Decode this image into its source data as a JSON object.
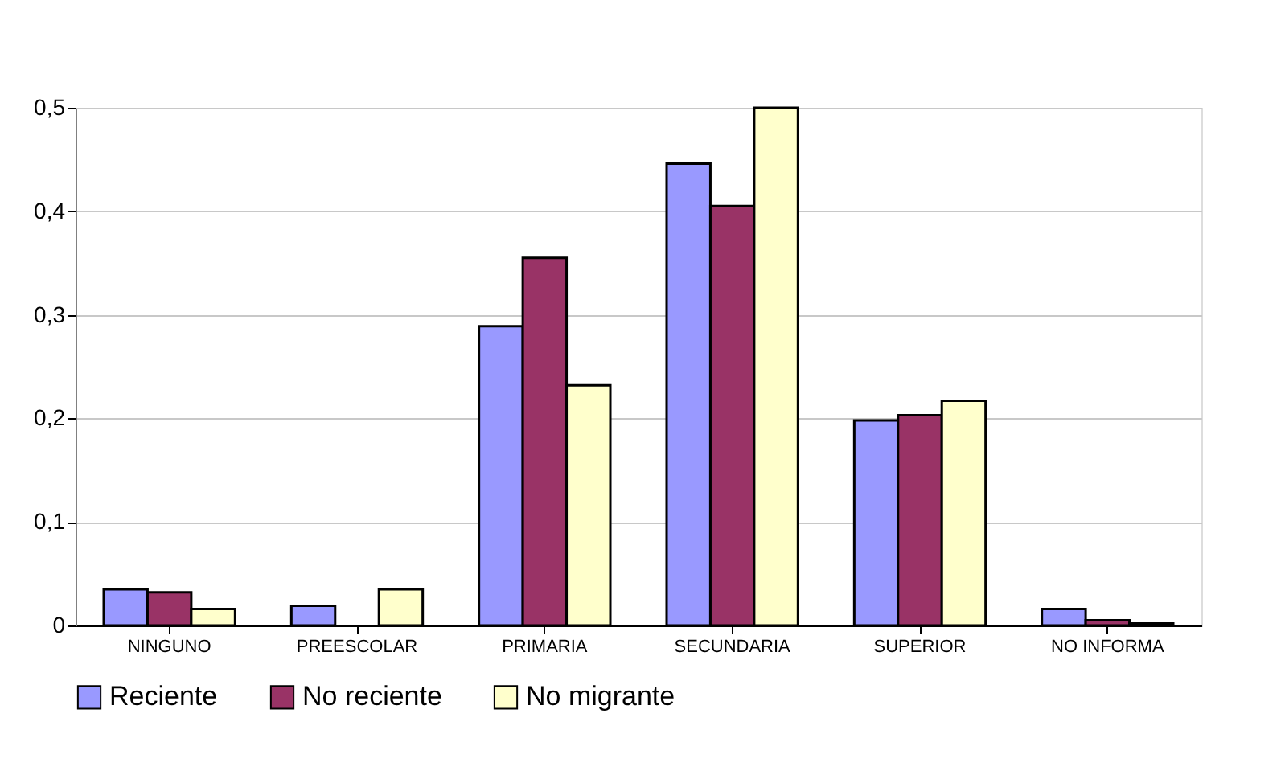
{
  "chart_data": {
    "type": "bar",
    "categories": [
      "NINGUNO",
      "PREESCOLAR",
      "PRIMARIA",
      "SECUNDARIA",
      "SUPERIOR",
      "NO INFORMA"
    ],
    "series": [
      {
        "name": "Reciente",
        "color": "#9999ff",
        "values": [
          0.035,
          0.019,
          0.289,
          0.446,
          0.198,
          0.016
        ]
      },
      {
        "name": "No reciente",
        "color": "#993366",
        "values": [
          0.032,
          null,
          0.355,
          0.405,
          0.203,
          0.005
        ]
      },
      {
        "name": "No migrante",
        "color": "#ffffcc",
        "values": [
          0.016,
          0.035,
          0.232,
          0.5,
          0.217,
          0.002
        ]
      }
    ],
    "ylim": [
      0,
      0.5
    ],
    "yticks": [
      {
        "value": 0,
        "label": "0"
      },
      {
        "value": 0.1,
        "label": "0,1"
      },
      {
        "value": 0.2,
        "label": "0,2"
      },
      {
        "value": 0.3,
        "label": "0,3"
      },
      {
        "value": 0.4,
        "label": "0,4"
      },
      {
        "value": 0.5,
        "label": "0,5"
      }
    ],
    "grid": "y",
    "legend": "bottom"
  }
}
